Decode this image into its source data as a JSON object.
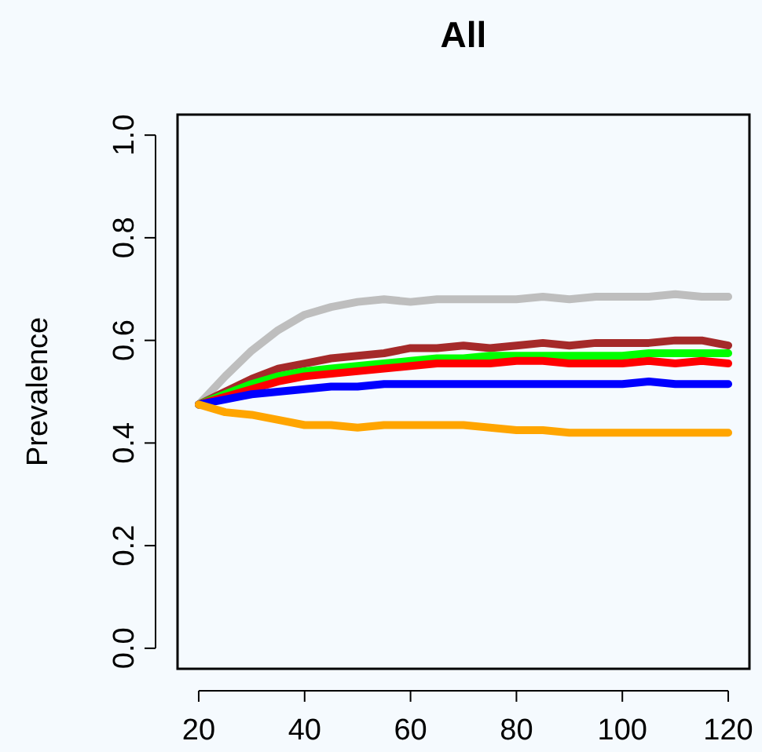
{
  "chart_data": {
    "type": "line",
    "title": "All",
    "ylabel": "Prevalence",
    "x": [
      20,
      25,
      30,
      35,
      40,
      45,
      50,
      55,
      60,
      65,
      70,
      75,
      80,
      85,
      90,
      95,
      100,
      105,
      110,
      115,
      120
    ],
    "xlim": [
      16,
      124
    ],
    "xticks": [
      20,
      40,
      60,
      80,
      100,
      120
    ],
    "ylim": [
      -0.04,
      1.04
    ],
    "yticks": [
      {
        "value": 0,
        "label": "0.0"
      },
      {
        "value": 0.2,
        "label": "0.2"
      },
      {
        "value": 0.4,
        "label": "0.4"
      },
      {
        "value": 0.6,
        "label": "0.6"
      },
      {
        "value": 0.8,
        "label": "0.8"
      },
      {
        "value": 1,
        "label": "1.0"
      }
    ],
    "grid": false,
    "marker": "none",
    "line_style": "solid",
    "series": [
      {
        "color": "#bebebe",
        "values": [
          0.475,
          0.53,
          0.58,
          0.62,
          0.65,
          0.665,
          0.675,
          0.68,
          0.675,
          0.68,
          0.68,
          0.68,
          0.68,
          0.685,
          0.68,
          0.685,
          0.685,
          0.685,
          0.69,
          0.685,
          0.685
        ]
      },
      {
        "color": "#a52a2a",
        "values": [
          0.475,
          0.5,
          0.525,
          0.545,
          0.555,
          0.565,
          0.57,
          0.575,
          0.585,
          0.585,
          0.59,
          0.585,
          0.59,
          0.595,
          0.59,
          0.595,
          0.595,
          0.595,
          0.6,
          0.6,
          0.59
        ]
      },
      {
        "color": "#00ff00",
        "values": [
          0.475,
          0.495,
          0.515,
          0.53,
          0.54,
          0.545,
          0.55,
          0.555,
          0.56,
          0.565,
          0.565,
          0.57,
          0.57,
          0.57,
          0.57,
          0.57,
          0.57,
          0.575,
          0.575,
          0.575,
          0.575
        ]
      },
      {
        "color": "#ff0000",
        "values": [
          0.475,
          0.49,
          0.505,
          0.52,
          0.53,
          0.535,
          0.54,
          0.545,
          0.55,
          0.555,
          0.555,
          0.555,
          0.56,
          0.56,
          0.555,
          0.555,
          0.555,
          0.56,
          0.555,
          0.56,
          0.555
        ]
      },
      {
        "color": "#0000ff",
        "values": [
          0.475,
          0.485,
          0.495,
          0.5,
          0.505,
          0.51,
          0.51,
          0.515,
          0.515,
          0.515,
          0.515,
          0.515,
          0.515,
          0.515,
          0.515,
          0.515,
          0.515,
          0.52,
          0.515,
          0.515,
          0.515
        ]
      },
      {
        "color": "#ffa500",
        "values": [
          0.475,
          0.46,
          0.455,
          0.445,
          0.435,
          0.435,
          0.43,
          0.435,
          0.435,
          0.435,
          0.435,
          0.43,
          0.425,
          0.425,
          0.42,
          0.42,
          0.42,
          0.42,
          0.42,
          0.42,
          0.42
        ]
      }
    ]
  }
}
